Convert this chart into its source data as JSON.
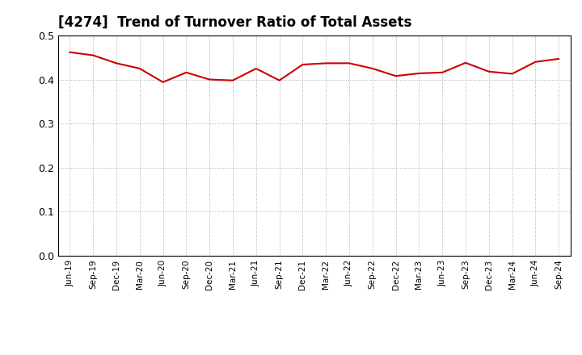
{
  "title": "[4274]  Trend of Turnover Ratio of Total Assets",
  "title_fontsize": 12,
  "line_color": "#cc0000",
  "line_width": 1.5,
  "background_color": "#ffffff",
  "grid_color": "#aaaaaa",
  "ylim": [
    0.0,
    0.5
  ],
  "yticks": [
    0.0,
    0.1,
    0.2,
    0.3,
    0.4,
    0.5
  ],
  "labels": [
    "Jun-19",
    "Sep-19",
    "Dec-19",
    "Mar-20",
    "Jun-20",
    "Sep-20",
    "Dec-20",
    "Mar-21",
    "Jun-21",
    "Sep-21",
    "Dec-21",
    "Mar-22",
    "Jun-22",
    "Sep-22",
    "Dec-22",
    "Mar-23",
    "Jun-23",
    "Sep-23",
    "Dec-23",
    "Mar-24",
    "Jun-24",
    "Sep-24"
  ],
  "values": [
    0.462,
    0.455,
    0.437,
    0.425,
    0.394,
    0.416,
    0.4,
    0.398,
    0.425,
    0.398,
    0.434,
    0.437,
    0.437,
    0.425,
    0.408,
    0.414,
    0.416,
    0.438,
    0.418,
    0.413,
    0.44,
    0.447
  ]
}
